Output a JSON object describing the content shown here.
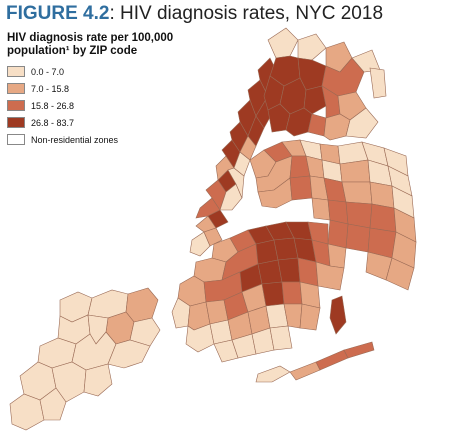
{
  "figure": {
    "label": "FIGURE 4.2",
    "text": ": HIV diagnosis rates, NYC 2018"
  },
  "legend": {
    "title_line1": "HIV diagnosis rate per 100,000",
    "title_line2": "population¹ by ZIP code",
    "items": [
      {
        "label": "0.0 - 7.0",
        "color": "#f7dfc6"
      },
      {
        "label": "7.0 - 15.8",
        "color": "#e6a884"
      },
      {
        "label": "15.8 - 26.8",
        "color": "#cd6c4f"
      },
      {
        "label": "26.8 - 83.7",
        "color": "#9e3a22"
      },
      {
        "label": "Non-residential zones",
        "color": "#ffffff"
      }
    ]
  }
}
